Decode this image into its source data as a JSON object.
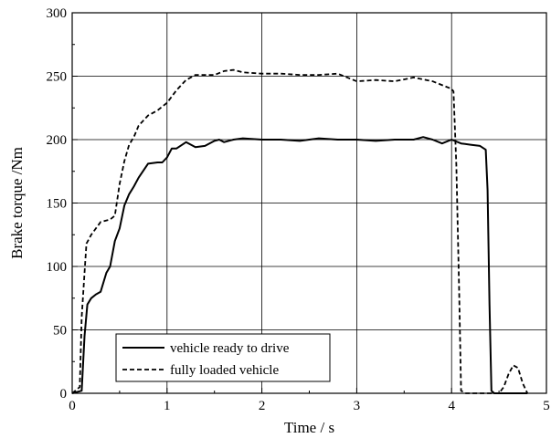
{
  "chart_data": {
    "type": "line",
    "title": "",
    "xlabel": "Time / s",
    "ylabel": "Brake torque /Nm",
    "xlim": [
      0,
      5
    ],
    "ylim": [
      0,
      300
    ],
    "xticks": [
      "0",
      "1",
      "2",
      "3",
      "4",
      "5"
    ],
    "yticks": [
      "0",
      "50",
      "100",
      "150",
      "200",
      "250",
      "300"
    ],
    "grid": true,
    "legend_position": "bottom-left",
    "series": [
      {
        "name": "vehicle ready to drive",
        "style": "solid",
        "color": "#000000",
        "x": [
          0,
          0.1,
          0.13,
          0.16,
          0.2,
          0.25,
          0.3,
          0.36,
          0.4,
          0.45,
          0.5,
          0.55,
          0.6,
          0.65,
          0.7,
          0.8,
          0.9,
          0.95,
          1.0,
          1.05,
          1.1,
          1.2,
          1.3,
          1.4,
          1.5,
          1.55,
          1.6,
          1.7,
          1.8,
          2.0,
          2.2,
          2.4,
          2.6,
          2.8,
          3.0,
          3.2,
          3.4,
          3.6,
          3.7,
          3.8,
          3.9,
          4.0,
          4.1,
          4.2,
          4.3,
          4.36,
          4.38,
          4.4,
          4.42,
          4.45,
          4.5,
          4.6,
          4.7,
          4.8
        ],
        "values": [
          0,
          2,
          45,
          70,
          75,
          78,
          80,
          95,
          100,
          120,
          130,
          148,
          157,
          163,
          170,
          181,
          182,
          182,
          186,
          193,
          193,
          198,
          194,
          195,
          199,
          200,
          198,
          200,
          201,
          200,
          200,
          199,
          201,
          200,
          200,
          199,
          200,
          200,
          202,
          200,
          197,
          200,
          197,
          196,
          195,
          192,
          160,
          70,
          2,
          0,
          0,
          0,
          0,
          0
        ]
      },
      {
        "name": "fully loaded vehicle",
        "style": "dashed",
        "color": "#000000",
        "x": [
          0,
          0.08,
          0.1,
          0.13,
          0.15,
          0.2,
          0.3,
          0.4,
          0.45,
          0.5,
          0.55,
          0.6,
          0.65,
          0.7,
          0.8,
          0.9,
          1.0,
          1.1,
          1.2,
          1.3,
          1.4,
          1.5,
          1.6,
          1.7,
          1.8,
          2.0,
          2.2,
          2.4,
          2.6,
          2.8,
          3.0,
          3.2,
          3.4,
          3.6,
          3.8,
          4.0,
          4.02,
          4.05,
          4.08,
          4.1,
          4.15,
          4.4,
          4.5,
          4.55,
          4.6,
          4.65,
          4.7,
          4.75,
          4.8
        ],
        "values": [
          0,
          5,
          60,
          95,
          118,
          125,
          135,
          137,
          140,
          165,
          183,
          196,
          202,
          211,
          219,
          223,
          229,
          239,
          247,
          251,
          251,
          251,
          254,
          255,
          253,
          252,
          252,
          251,
          251,
          252,
          246,
          247,
          246,
          249,
          246,
          240,
          238,
          180,
          80,
          2,
          0,
          0,
          0,
          5,
          15,
          22,
          20,
          8,
          0
        ]
      }
    ]
  }
}
